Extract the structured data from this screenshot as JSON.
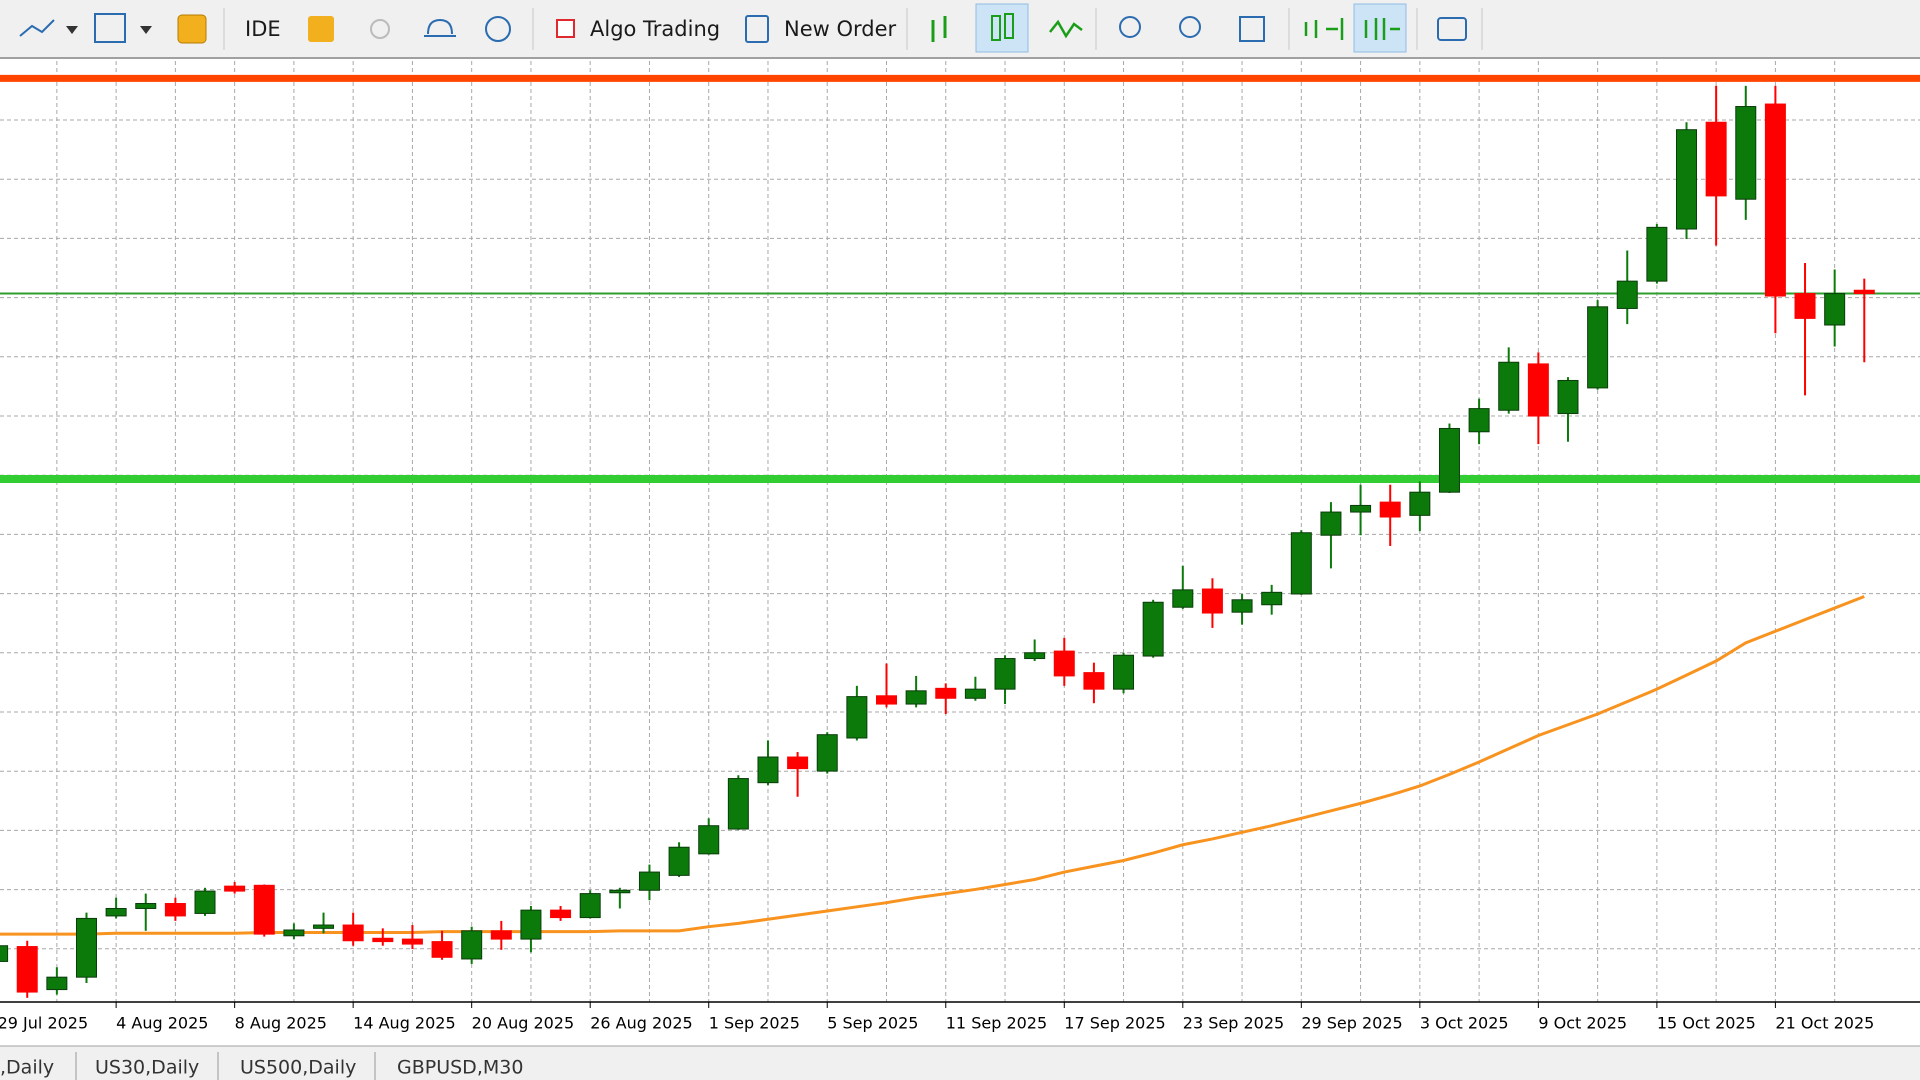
{
  "toolbar": {
    "buttons": [
      "IDE",
      "Algo Trading",
      "New Order"
    ]
  },
  "chart_data": {
    "type": "candlestick",
    "categories": [
      "29 Jul 2025",
      null,
      null,
      null,
      "4 Aug 2025",
      null,
      null,
      null,
      "8 Aug 2025",
      null,
      null,
      null,
      "14 Aug 2025",
      null,
      null,
      null,
      "20 Aug 2025",
      null,
      null,
      null,
      "26 Aug 2025",
      null,
      null,
      null,
      "1 Sep 2025",
      null,
      null,
      null,
      "5 Sep 2025",
      null,
      null,
      null,
      "11 Sep 2025",
      null,
      null,
      null,
      "17 Sep 2025",
      null,
      null,
      null,
      "23 Sep 2025",
      null,
      null,
      null,
      "29 Sep 2025",
      null,
      null,
      null,
      "3 Oct 2025",
      null,
      null,
      null,
      "9 Oct 2025",
      null,
      null,
      null,
      "15 Oct 2025",
      null,
      null,
      null,
      "21 Oct 2025",
      null,
      null,
      null
    ],
    "open": [
      3322,
      3340,
      3288,
      3303,
      3377,
      3386,
      3392,
      3380,
      3413,
      3414,
      3353,
      3362,
      3366,
      3350,
      3349,
      3346,
      3325,
      3359,
      3349,
      3384,
      3375,
      3405,
      3408,
      3426,
      3452,
      3482,
      3538,
      3569,
      3552,
      3592,
      3643,
      3633,
      3652,
      3640,
      3651,
      3688,
      3697,
      3671,
      3651,
      3691,
      3750,
      3772,
      3744,
      3753,
      3766,
      3837,
      3865,
      3877,
      3861,
      3889,
      3962,
      3988,
      4044,
      3984,
      4015,
      4111,
      4144,
      4207,
      4336,
      4243,
      4358,
      4129,
      4091,
      4133
    ],
    "high": [
      3347,
      3347,
      3315,
      3381,
      3399,
      3404,
      3399,
      3411,
      3418,
      3415,
      3368,
      3381,
      3381,
      3362,
      3366,
      3359,
      3364,
      3371,
      3389,
      3389,
      3408,
      3411,
      3439,
      3466,
      3495,
      3547,
      3589,
      3575,
      3599,
      3655,
      3682,
      3667,
      3658,
      3666,
      3692,
      3711,
      3713,
      3683,
      3695,
      3759,
      3800,
      3785,
      3766,
      3777,
      3843,
      3877,
      3898,
      3898,
      3902,
      3972,
      4002,
      4064,
      4058,
      4028,
      4121,
      4181,
      4213,
      4336,
      4380,
      4380,
      4380,
      4166,
      4158,
      4147
    ],
    "low": [
      3315,
      3278,
      3282,
      3296,
      3374,
      3359,
      3371,
      3377,
      3404,
      3352,
      3349,
      3356,
      3341,
      3341,
      3337,
      3324,
      3319,
      3336,
      3333,
      3371,
      3374,
      3386,
      3396,
      3424,
      3451,
      3481,
      3535,
      3521,
      3549,
      3589,
      3629,
      3629,
      3621,
      3637,
      3633,
      3685,
      3655,
      3634,
      3646,
      3689,
      3748,
      3725,
      3729,
      3741,
      3765,
      3797,
      3837,
      3824,
      3842,
      3888,
      3947,
      3984,
      3947,
      3950,
      4013,
      4092,
      4141,
      4195,
      4187,
      4218,
      4081,
      4006,
      4065,
      4046
    ],
    "close": [
      3341,
      3285,
      3303,
      3374,
      3386,
      3392,
      3377,
      3407,
      3407,
      3355,
      3360,
      3366,
      3347,
      3346,
      3343,
      3327,
      3359,
      3349,
      3384,
      3375,
      3404,
      3408,
      3430,
      3460,
      3486,
      3543,
      3569,
      3555,
      3596,
      3642,
      3633,
      3649,
      3640,
      3651,
      3688,
      3695,
      3667,
      3651,
      3692,
      3756,
      3771,
      3743,
      3759,
      3768,
      3840,
      3865,
      3873,
      3859,
      3889,
      3966,
      3990,
      4046,
      3981,
      4024,
      4113,
      4144,
      4209,
      4327,
      4247,
      4355,
      4126,
      4099,
      4129,
      4129
    ],
    "up_color": "#0b7a0b",
    "down_color": "#ff0000",
    "ma": {
      "color": "#f7931e",
      "values": [
        3355,
        3355,
        3355,
        3355,
        3356,
        3356,
        3356,
        3356,
        3356,
        3357,
        3357,
        3357,
        3357,
        3357,
        3357,
        3358,
        3358,
        3358,
        3358,
        3358,
        3358,
        3359,
        3359,
        3359,
        3364,
        3368,
        3373,
        3378,
        3383,
        3388,
        3393,
        3399,
        3404,
        3409,
        3415,
        3421,
        3430,
        3437,
        3444,
        3453,
        3463,
        3470,
        3478,
        3486,
        3495,
        3504,
        3513,
        3523,
        3534,
        3548,
        3563,
        3579,
        3595,
        3608,
        3621,
        3636,
        3651,
        3668,
        3685,
        3707,
        3721,
        3735,
        3749,
        3763
      ]
    },
    "hlines": [
      {
        "value": 4389,
        "color": "#ff4500",
        "width": 7
      },
      {
        "value": 4129,
        "color": "#2e9e2e",
        "width": 2
      },
      {
        "value": 3905,
        "color": "#32cd32",
        "width": 8
      }
    ],
    "ylim": [
      3273,
      4410
    ],
    "grid": true
  },
  "tabs": [
    ",Daily",
    "US30,Daily",
    "US500,Daily",
    "GBPUSD,M30"
  ]
}
